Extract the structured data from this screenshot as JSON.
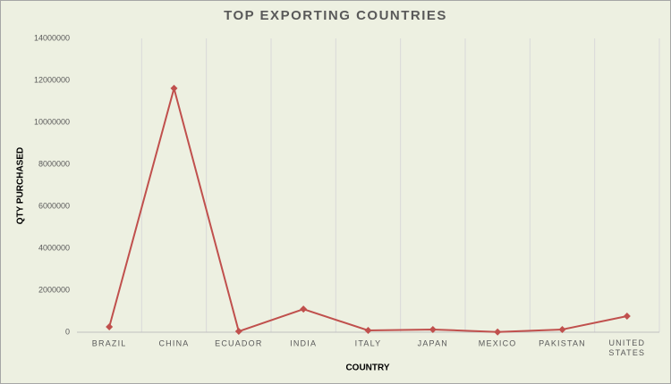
{
  "chart_data": {
    "type": "line",
    "title": "TOP EXPORTING COUNTRIES",
    "x_label": "COUNTRY",
    "y_label": "QTY PURCHASED",
    "categories": [
      "BRAZIL",
      "CHINA",
      "ECUADOR",
      "INDIA",
      "ITALY",
      "JAPAN",
      "MEXICO",
      "PAKISTAN",
      "UNITED STATES"
    ],
    "values": [
      255000,
      11620000,
      40000,
      1100000,
      85000,
      130000,
      10000,
      130000,
      766000
    ],
    "color": "#c0504d",
    "ylim": [
      0,
      14000000
    ],
    "yticks": [
      0,
      2000000,
      4000000,
      6000000,
      8000000,
      10000000,
      12000000,
      14000000
    ],
    "grid": "vertical"
  }
}
